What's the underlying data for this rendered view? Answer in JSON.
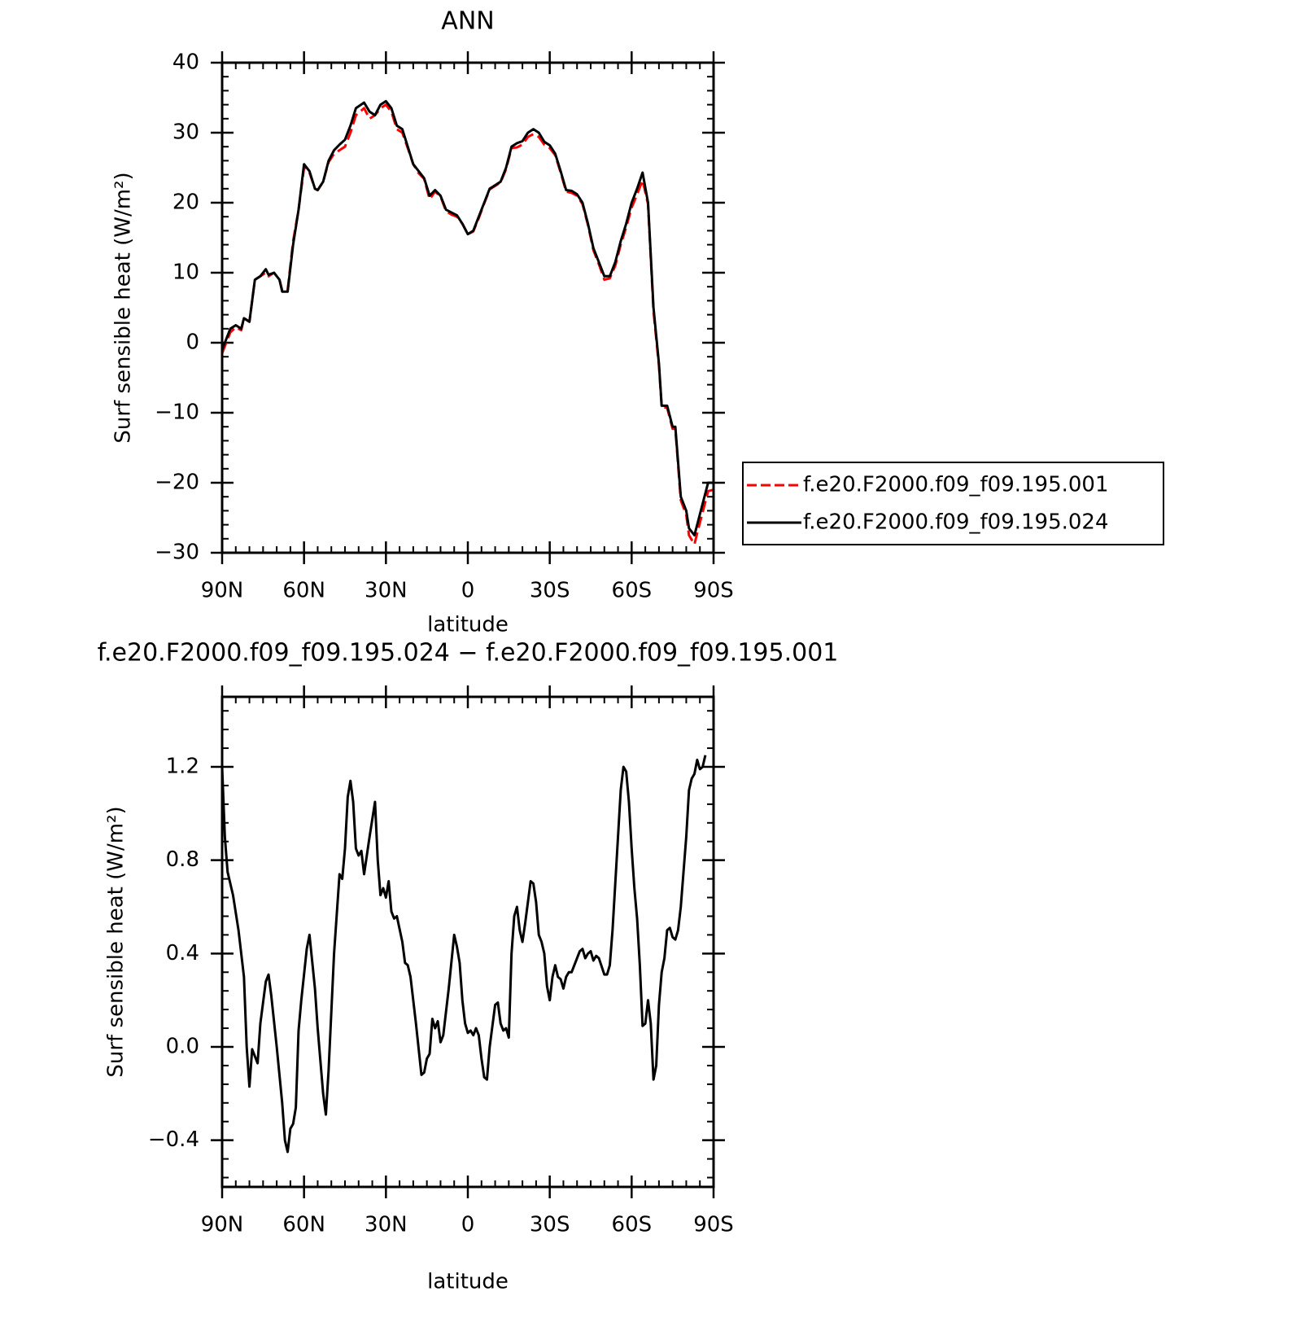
{
  "chart_data": [
    {
      "type": "line",
      "title": "ANN",
      "xlabel": "latitude",
      "ylabel": "Surf sensible heat (W/m²)",
      "x": [
        90,
        87,
        85,
        83,
        82,
        80,
        78,
        76,
        74,
        73,
        71,
        69,
        68,
        66,
        64,
        62,
        60,
        58,
        56,
        55,
        53,
        51,
        49,
        47,
        45,
        43,
        41,
        38,
        36,
        34,
        32,
        30,
        28,
        26,
        24,
        22,
        20,
        18,
        16,
        14,
        12,
        10,
        8,
        6,
        4,
        2,
        0,
        -2,
        -4,
        -6,
        -8,
        -10,
        -12,
        -14,
        -16,
        -18,
        -20,
        -22,
        -24,
        -26,
        -28,
        -30,
        -32,
        -34,
        -36,
        -38,
        -40,
        -42,
        -44,
        -46,
        -48,
        -50,
        -52,
        -54,
        -56,
        -58,
        -60,
        -62,
        -64,
        -66,
        -68,
        -70,
        -71,
        -73,
        -75,
        -76,
        -78,
        -80,
        -81,
        -83,
        -84,
        -86,
        -88,
        -90
      ],
      "series": [
        {
          "name": "f.e20.F2000.f09_f09.195.001",
          "color": "#ff0000",
          "style": "dashed",
          "values": [
            -1.5,
            1.5,
            2.2,
            1.8,
            3.5,
            3,
            9,
            9.5,
            10,
            9.5,
            10,
            9,
            7.5,
            7.5,
            14.5,
            19,
            25,
            24.3,
            22,
            21.8,
            23,
            25.8,
            27,
            27.5,
            28,
            30,
            32.5,
            33.5,
            32,
            32.5,
            33.5,
            34,
            33,
            30.5,
            30,
            27.8,
            25.5,
            24.2,
            23.4,
            20.5,
            21.6,
            20.9,
            18.8,
            18.3,
            18,
            17,
            15.5,
            15.9,
            17.8,
            19.9,
            21.9,
            22.4,
            22.9,
            24.8,
            27.8,
            27.9,
            28.3,
            29.4,
            29.8,
            29.4,
            28.3,
            27.8,
            26.8,
            24.3,
            21.6,
            21.4,
            21,
            19.8,
            16.8,
            13.2,
            11.2,
            9,
            9.2,
            11,
            14,
            16.5,
            19.3,
            21.2,
            23.2,
            19.8,
            4.5,
            -3.3,
            -9.2,
            -9.3,
            -12.3,
            -12.3,
            -22.5,
            -24.6,
            -27.5,
            -28.8,
            -27.2,
            -24.2,
            -21.2,
            -21
          ]
        },
        {
          "name": "f.e20.F2000.f09_f09.195.024",
          "color": "#000000",
          "style": "solid",
          "values": [
            -1,
            2,
            2.5,
            2,
            3.5,
            3,
            9,
            9.5,
            10.5,
            9.7,
            10,
            9,
            7.3,
            7.3,
            14,
            19,
            25.5,
            24.5,
            22,
            21.8,
            23,
            26,
            27.5,
            28.3,
            29,
            31,
            33.5,
            34.3,
            33,
            32.5,
            34,
            34.5,
            33.5,
            31,
            30.5,
            28,
            25.5,
            24.5,
            23.5,
            21,
            21.8,
            21,
            19,
            18.6,
            18.2,
            17,
            15.5,
            16,
            18,
            20,
            22,
            22.5,
            23,
            25,
            28,
            28.5,
            28.8,
            30,
            30.5,
            30,
            28.7,
            28.2,
            27,
            24.5,
            21.8,
            21.7,
            21.2,
            20,
            17,
            13.5,
            11.5,
            9.5,
            9.5,
            11.5,
            14.5,
            17,
            20,
            22,
            24.3,
            20,
            5,
            -3,
            -9,
            -9,
            -12,
            -12,
            -22,
            -24,
            -26.5,
            -27.5,
            -26,
            -23,
            -20,
            -20
          ]
        }
      ],
      "xlim": [
        90,
        -90
      ],
      "xticks": [
        {
          "value": 90,
          "label": "90N"
        },
        {
          "value": 60,
          "label": "60N"
        },
        {
          "value": 30,
          "label": "30N"
        },
        0,
        {
          "value": -30,
          "label": "30S"
        },
        {
          "value": -60,
          "label": "60S"
        },
        {
          "value": -90,
          "label": "90S"
        }
      ],
      "ylim": [
        -30,
        40
      ],
      "yticks": [
        {
          "value": -30,
          "label": "−30"
        },
        {
          "value": -20,
          "label": "−20"
        },
        {
          "value": -10,
          "label": "−10"
        },
        0,
        10,
        20,
        30,
        40
      ],
      "legend": "right"
    },
    {
      "type": "line",
      "title": "f.e20.F2000.f09_f09.195.024 − f.e20.F2000.f09_f09.195.001",
      "xlabel": "latitude",
      "ylabel": "Surf sensible heat (W/m²)",
      "x": [
        90,
        89,
        88,
        86,
        84,
        82,
        81,
        80,
        79,
        77,
        76,
        74,
        73,
        72,
        70,
        68,
        67,
        66,
        65,
        64,
        63,
        62,
        61,
        59,
        58,
        56,
        55,
        53,
        52,
        51,
        49,
        47,
        46,
        45,
        44,
        43,
        42,
        41,
        40,
        39,
        38,
        36,
        34,
        33,
        32,
        31,
        30,
        29,
        28,
        27,
        26,
        24,
        23,
        22,
        21,
        19,
        17,
        16,
        15,
        14,
        13,
        12,
        11,
        10,
        9,
        7,
        5,
        4,
        3,
        2,
        1,
        0,
        -1,
        -2,
        -3,
        -4,
        -5,
        -6,
        -7,
        -8,
        -10,
        -11,
        -12,
        -13,
        -14,
        -15,
        -16,
        -17,
        -18,
        -19,
        -20,
        -21,
        -22,
        -23,
        -24,
        -25,
        -26,
        -27,
        -28,
        -29,
        -30,
        -31,
        -32,
        -33,
        -34,
        -35,
        -36,
        -37,
        -38,
        -40,
        -41,
        -42,
        -43,
        -44,
        -45,
        -46,
        -47,
        -48,
        -50,
        -51,
        -52,
        -53,
        -55,
        -56,
        -57,
        -58,
        -59,
        -60,
        -61,
        -62,
        -63,
        -64,
        -65,
        -66,
        -67,
        -68,
        -69,
        -70,
        -71,
        -72,
        -73,
        -74,
        -75,
        -76,
        -77,
        -78,
        -80,
        -81,
        -82,
        -83,
        -84,
        -85,
        -86,
        -87
      ],
      "color": "#000000",
      "values": [
        1.2,
        0.9,
        0.75,
        0.65,
        0.5,
        0.3,
        0.0,
        -0.17,
        -0.01,
        -0.07,
        0.1,
        0.28,
        0.31,
        0.22,
        0.0,
        -0.24,
        -0.4,
        -0.45,
        -0.35,
        -0.33,
        -0.26,
        0.07,
        0.2,
        0.42,
        0.48,
        0.25,
        0.08,
        -0.2,
        -0.29,
        -0.1,
        0.4,
        0.74,
        0.72,
        0.85,
        1.07,
        1.14,
        1.05,
        0.85,
        0.82,
        0.84,
        0.74,
        0.9,
        1.05,
        0.8,
        0.65,
        0.68,
        0.64,
        0.71,
        0.58,
        0.55,
        0.56,
        0.45,
        0.36,
        0.35,
        0.3,
        0.1,
        -0.12,
        -0.11,
        -0.05,
        -0.03,
        0.12,
        0.08,
        0.11,
        0.02,
        0.05,
        0.25,
        0.48,
        0.43,
        0.36,
        0.2,
        0.1,
        0.06,
        0.07,
        0.05,
        0.08,
        0.05,
        -0.05,
        -0.13,
        -0.14,
        0.0,
        0.18,
        0.19,
        0.1,
        0.07,
        0.08,
        0.04,
        0.4,
        0.56,
        0.6,
        0.5,
        0.45,
        0.53,
        0.62,
        0.71,
        0.7,
        0.62,
        0.48,
        0.45,
        0.4,
        0.26,
        0.2,
        0.3,
        0.35,
        0.3,
        0.29,
        0.25,
        0.3,
        0.32,
        0.32,
        0.38,
        0.41,
        0.42,
        0.38,
        0.4,
        0.41,
        0.37,
        0.39,
        0.38,
        0.31,
        0.31,
        0.35,
        0.5,
        0.9,
        1.1,
        1.2,
        1.18,
        1.05,
        0.85,
        0.68,
        0.55,
        0.35,
        0.09,
        0.1,
        0.2,
        0.1,
        -0.14,
        -0.08,
        0.18,
        0.32,
        0.38,
        0.5,
        0.51,
        0.47,
        0.46,
        0.5,
        0.6,
        0.9,
        1.1,
        1.15,
        1.17,
        1.23,
        1.19,
        1.2,
        1.25
      ],
      "xlim": [
        90,
        -90
      ],
      "xticks": [
        {
          "value": 90,
          "label": "90N"
        },
        {
          "value": 60,
          "label": "60N"
        },
        {
          "value": 30,
          "label": "30N"
        },
        0,
        {
          "value": -30,
          "label": "30S"
        },
        {
          "value": -60,
          "label": "60S"
        },
        {
          "value": -90,
          "label": "90S"
        }
      ],
      "ylim": [
        -0.6,
        1.5
      ],
      "yticks": [
        {
          "value": -0.4,
          "label": "−0.4"
        },
        {
          "value": 0,
          "label": "0.0"
        },
        0.4,
        0.8,
        1.2
      ]
    }
  ]
}
